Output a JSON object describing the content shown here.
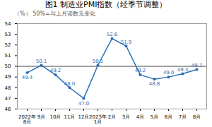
{
  "chart_data": {
    "type": "line",
    "title": "图1  制造业PMI指数（经季节调整）",
    "subtitle": "（%）  50%=与上月读数无变化",
    "categories": [
      "2022年\n8月",
      "9月",
      "10月",
      "11月",
      "12月",
      "2023年\n1月",
      "2月",
      "3月",
      "4月",
      "5月",
      "6月",
      "7月",
      "8月"
    ],
    "values": [
      49.4,
      50.1,
      49.2,
      48.0,
      47.0,
      50.1,
      52.6,
      51.9,
      49.2,
      48.8,
      49.0,
      49.3,
      49.7
    ],
    "value_labels": [
      "49.4",
      "50.1",
      "49.2",
      "48.0",
      "47.0",
      "50.1",
      "52.6",
      "51.9",
      "49.2",
      "48.8",
      "49.0",
      "49.3",
      "49.7"
    ],
    "color": "#2B6DB5",
    "marker": "circle",
    "data_labels": true,
    "reference_line": {
      "value": 50.0,
      "color": "#444444"
    },
    "ylim": [
      46,
      54
    ],
    "yticks": [
      46,
      47,
      48,
      49,
      50,
      51,
      52,
      53,
      54
    ],
    "grid": false
  }
}
